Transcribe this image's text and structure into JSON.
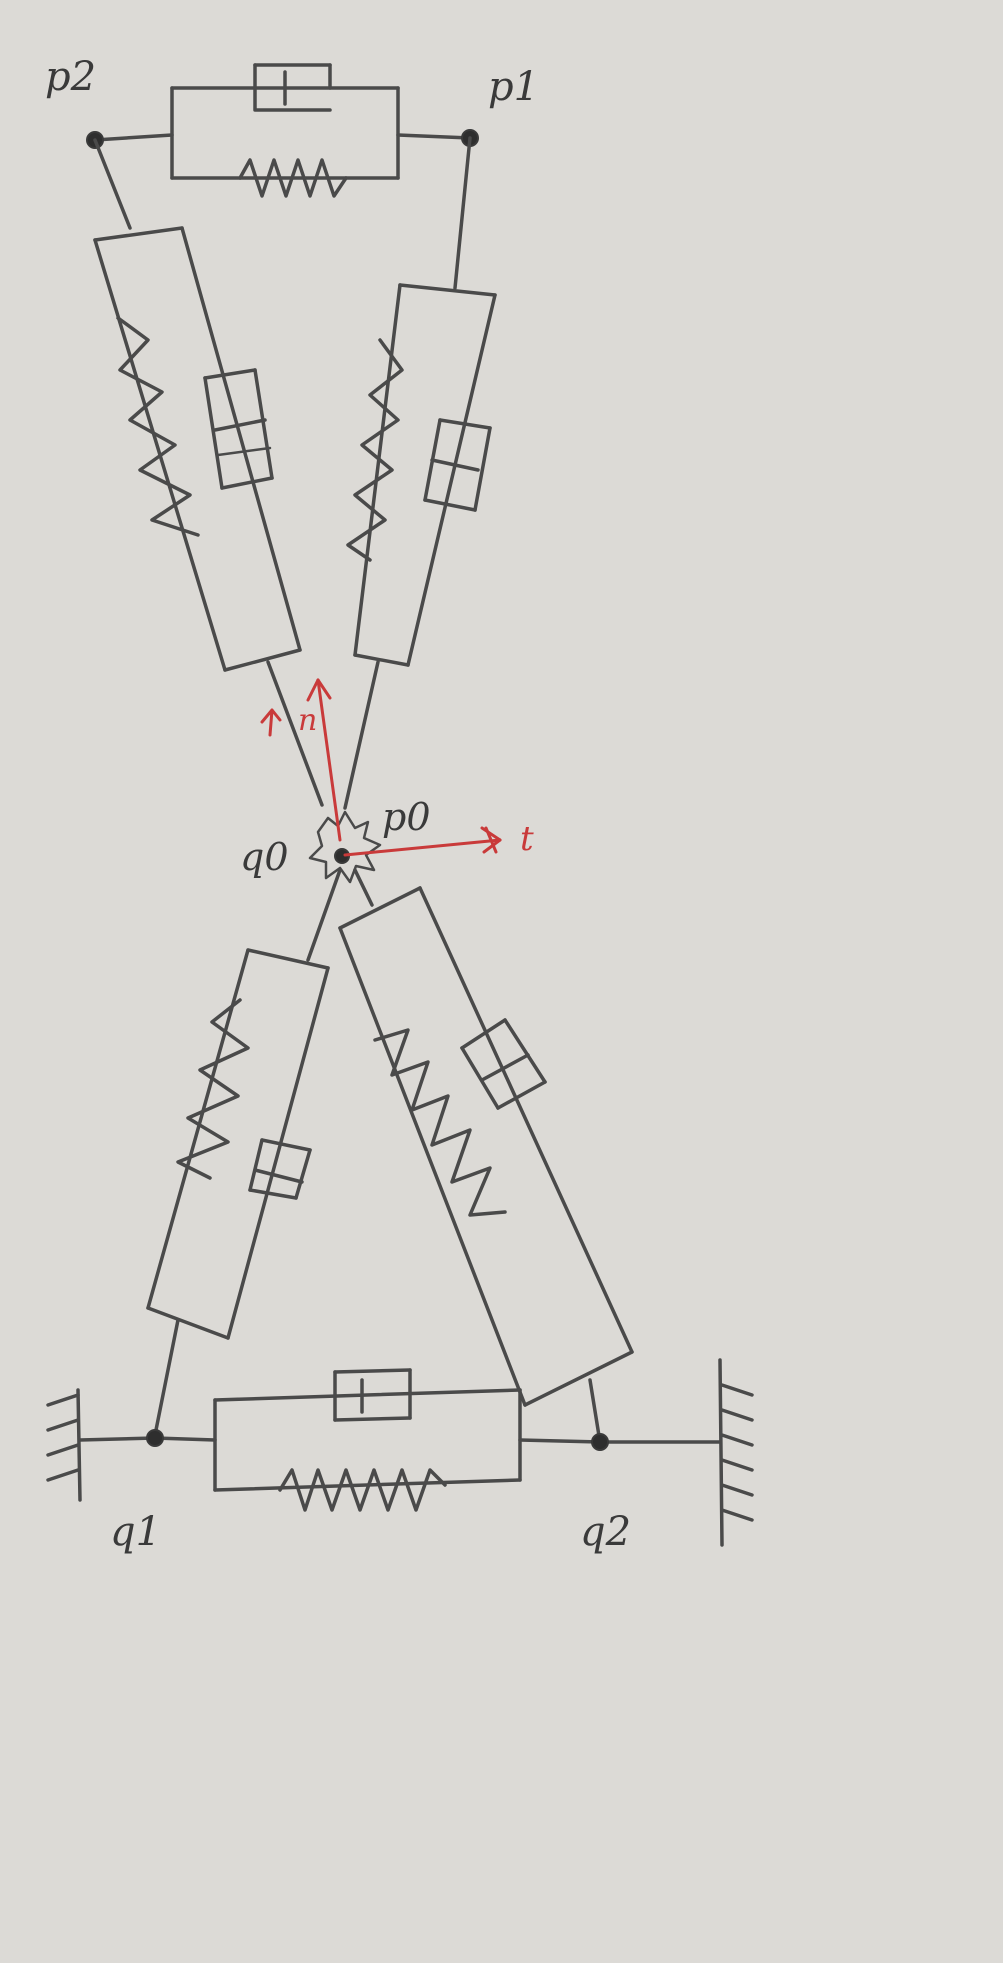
{
  "labels": {
    "p0": "p0",
    "p1": "p1",
    "p2": "p2",
    "q0": "q0",
    "q1": "q1",
    "q2": "q2",
    "t": "t",
    "n": "n"
  },
  "colors": {
    "paper": "#dcdad6",
    "ink": "#4a4a4a",
    "annotation": "#c93a3a"
  }
}
